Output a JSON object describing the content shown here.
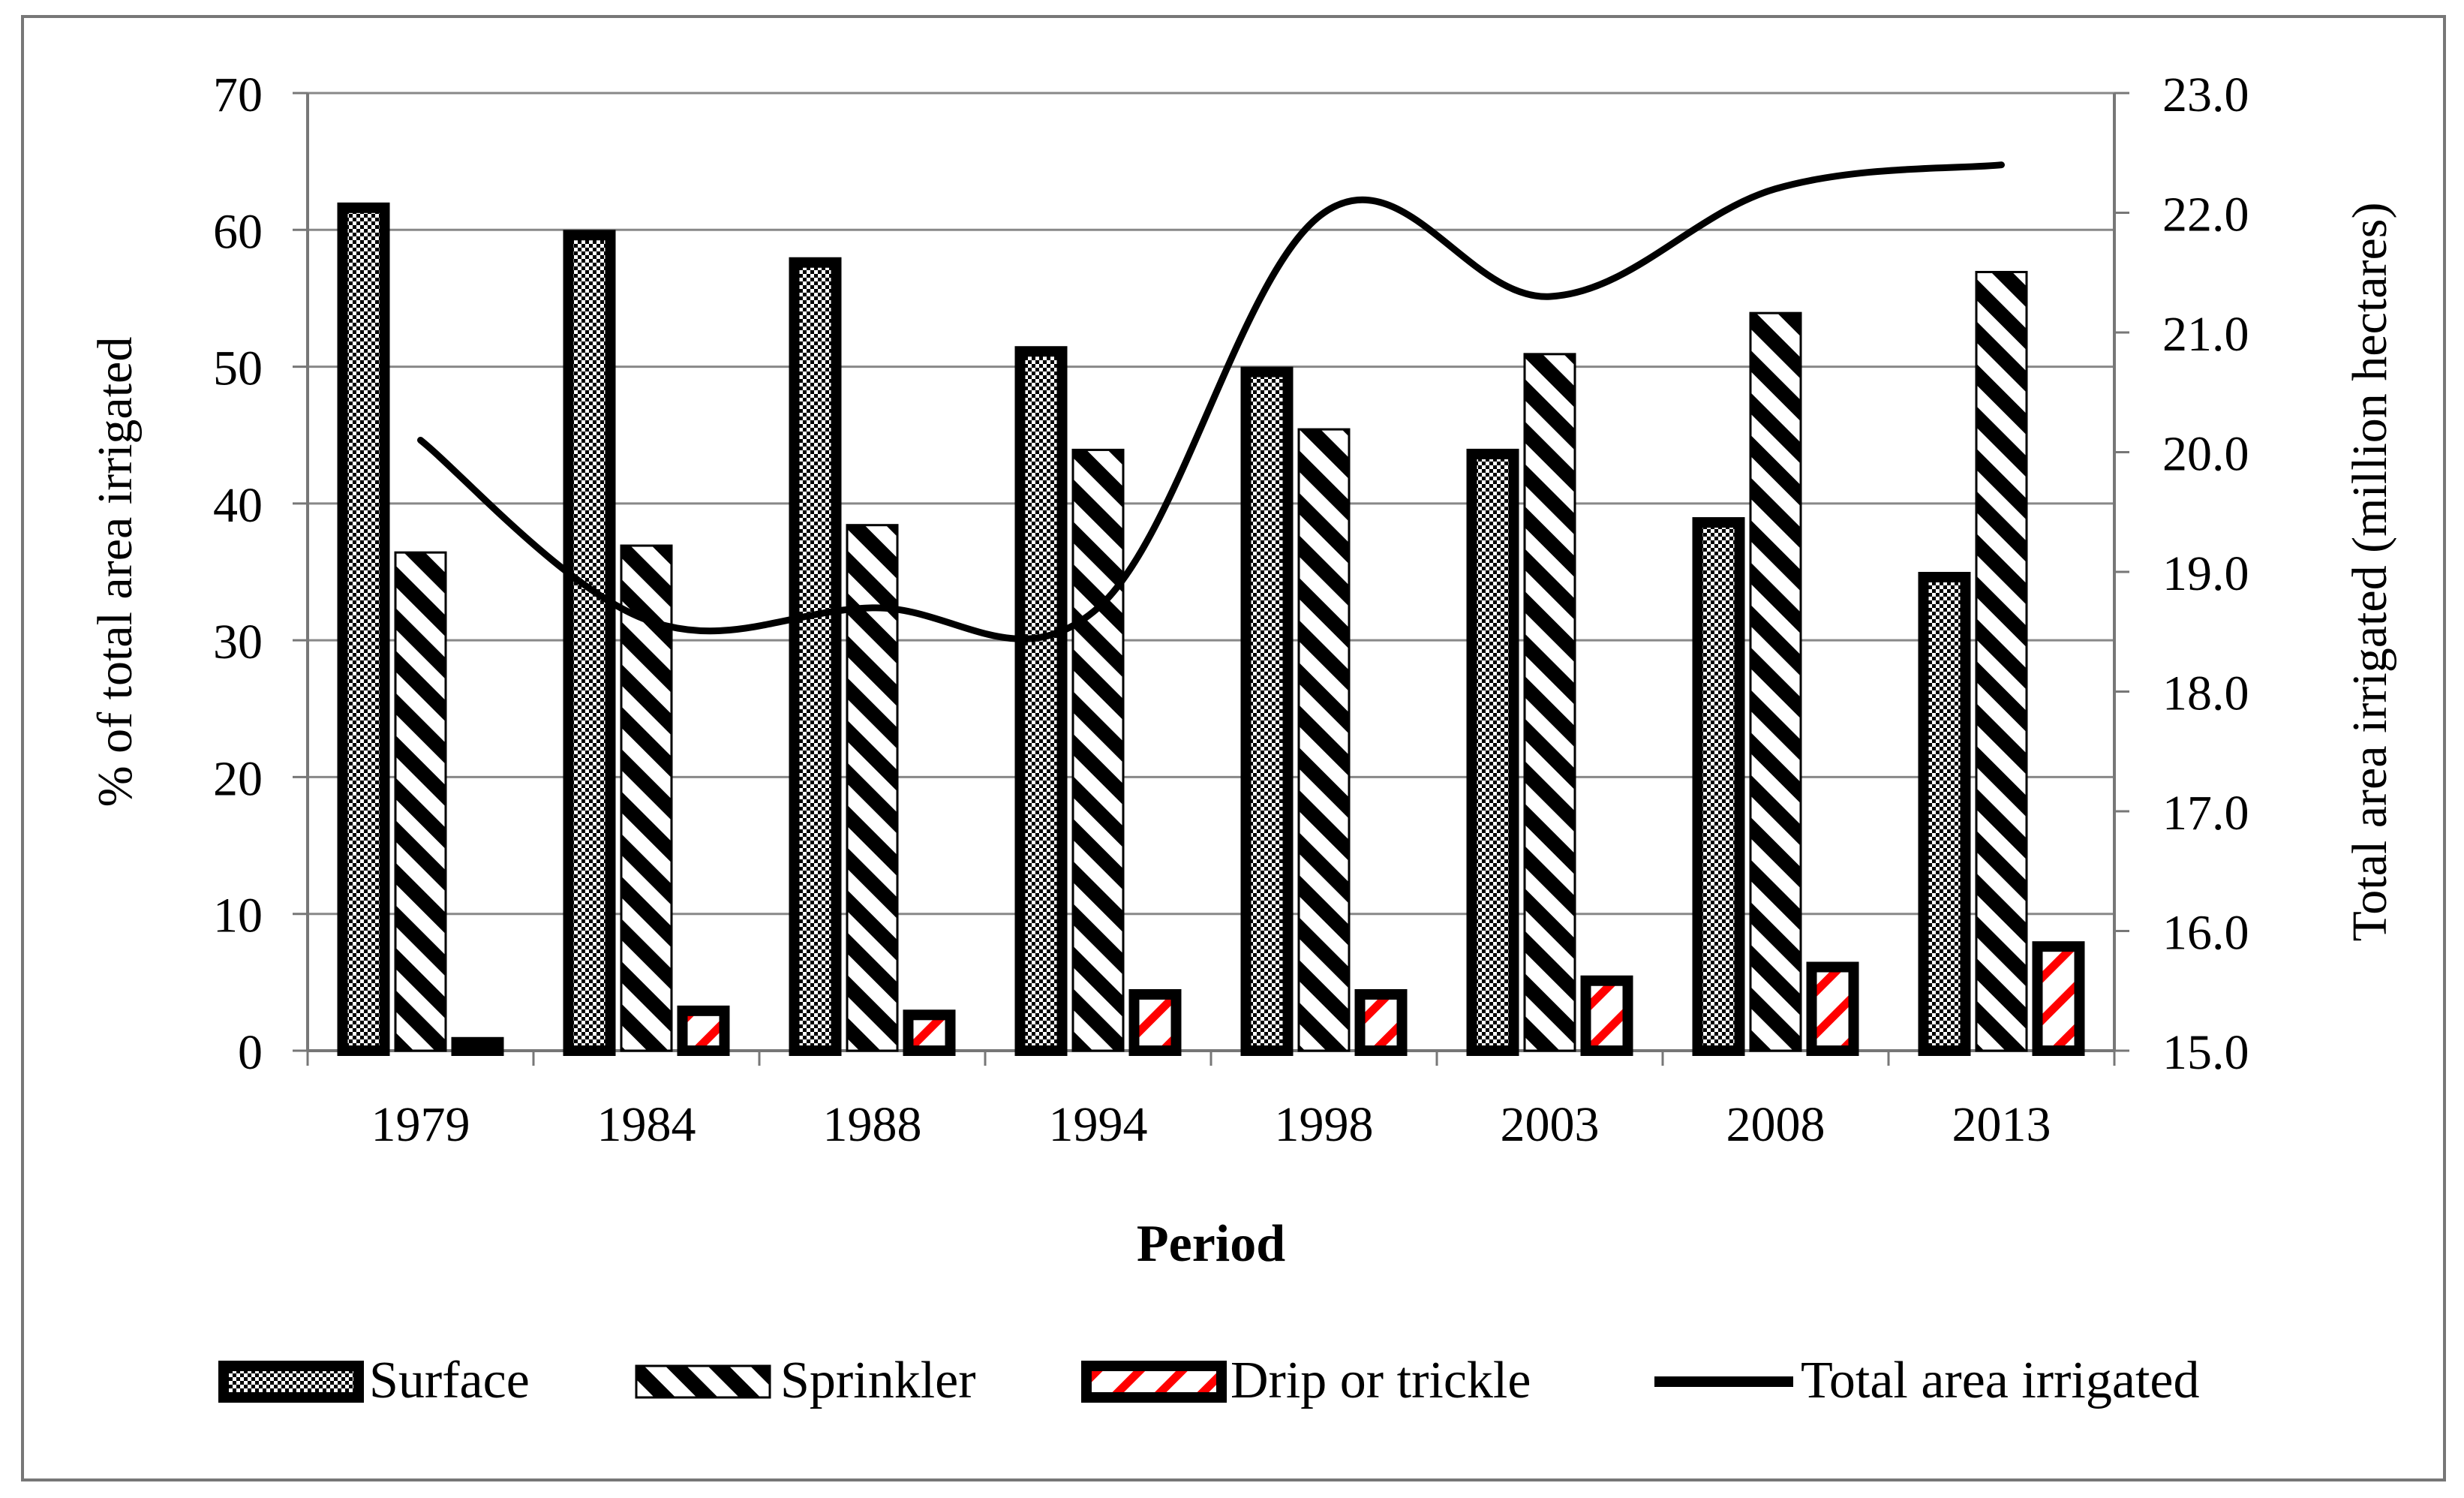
{
  "chart_data": {
    "type": "bar",
    "title": "",
    "xlabel": "Period",
    "ylabel": "% of total area irrigated",
    "y2label": "Total area irrigated (million hectares)",
    "categories": [
      "1979",
      "1984",
      "1988",
      "1994",
      "1998",
      "2003",
      "2008",
      "2013"
    ],
    "ylim": [
      0,
      70
    ],
    "yticks": [
      "0",
      "10",
      "20",
      "30",
      "40",
      "50",
      "60",
      "70"
    ],
    "y2lim": [
      15.0,
      23.0
    ],
    "y2ticks": [
      "15.0",
      "16.0",
      "17.0",
      "18.0",
      "19.0",
      "20.0",
      "21.0",
      "22.0",
      "23.0"
    ],
    "grid": true,
    "legend_position": "bottom",
    "series": [
      {
        "name": "Surface",
        "type": "bar",
        "pattern": "crosshatch",
        "axis": "left",
        "values": [
          62,
          60,
          58,
          51.5,
          50,
          44,
          39,
          35
        ]
      },
      {
        "name": "Sprinkler",
        "type": "bar",
        "pattern": "diagonal",
        "axis": "left",
        "values": [
          36.5,
          37,
          38.5,
          44,
          45.5,
          51,
          54,
          57
        ]
      },
      {
        "name": "Drip or trickle",
        "type": "bar",
        "pattern": "red-diagonal",
        "axis": "left",
        "values": [
          1,
          3.3,
          3,
          4.5,
          4.5,
          5.5,
          6.5,
          8
        ]
      },
      {
        "name": "Total area irrigated",
        "type": "line",
        "axis": "right",
        "values": [
          20.1,
          18.6,
          18.7,
          18.7,
          22.0,
          21.3,
          22.2,
          22.4
        ]
      }
    ],
    "colors": {
      "ink": "#000000",
      "drip_stripe": "#ff0000",
      "grid": "#888888",
      "frame": "#777777"
    }
  }
}
